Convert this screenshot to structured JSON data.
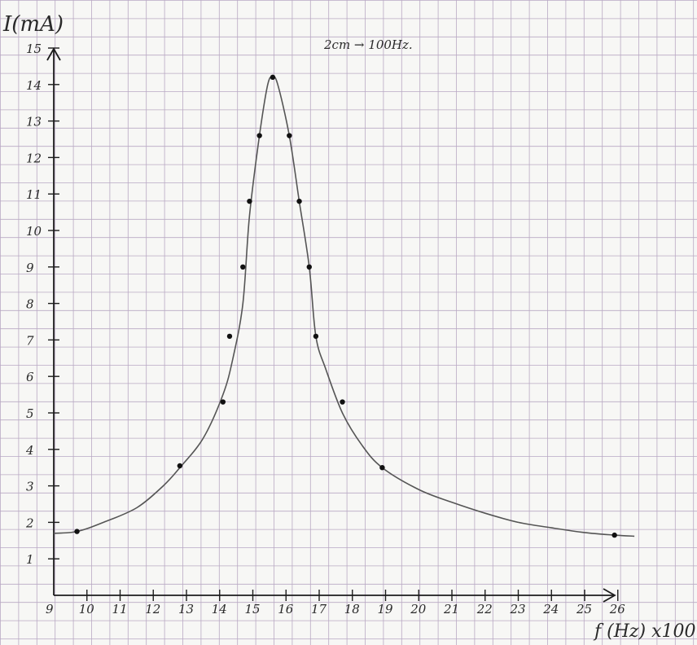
{
  "chart_data": {
    "type": "line",
    "title": "",
    "note": "2cm → 100Hz.",
    "xlabel": "f (Hz) x100",
    "ylabel": "I(mA)",
    "xlim": [
      9,
      26.5
    ],
    "ylim": [
      0,
      15
    ],
    "x_ticks": [
      "9",
      "10",
      "11",
      "12",
      "13",
      "14",
      "15",
      "16",
      "17",
      "18",
      "19",
      "20",
      "21",
      "22",
      "23",
      "24",
      "25",
      "26"
    ],
    "y_ticks": [
      "1",
      "2",
      "3",
      "4",
      "5",
      "6",
      "7",
      "8",
      "9",
      "10",
      "11",
      "12",
      "13",
      "14",
      "15"
    ],
    "points": {
      "x": [
        9.7,
        12.8,
        14.1,
        14.3,
        14.7,
        14.9,
        15.2,
        15.6,
        16.1,
        16.4,
        16.7,
        16.9,
        17.7,
        18.9,
        25.9
      ],
      "y": [
        1.75,
        3.55,
        5.3,
        7.1,
        9.0,
        10.8,
        12.6,
        14.2,
        12.6,
        10.8,
        9.0,
        7.1,
        5.3,
        3.5,
        1.65
      ]
    },
    "curve": {
      "x": [
        9.0,
        9.7,
        10.5,
        11.5,
        12.3,
        12.8,
        13.5,
        14.1,
        14.4,
        14.7,
        14.9,
        15.2,
        15.45,
        15.6,
        15.75,
        16.1,
        16.4,
        16.7,
        16.9,
        17.2,
        17.7,
        18.3,
        18.9,
        20.0,
        21.0,
        22.0,
        23.0,
        24.0,
        25.0,
        25.9,
        26.5
      ],
      "y": [
        1.7,
        1.75,
        2.0,
        2.4,
        3.0,
        3.5,
        4.3,
        5.5,
        6.5,
        8.0,
        10.4,
        12.6,
        14.0,
        14.2,
        14.0,
        12.6,
        10.8,
        9.0,
        7.1,
        6.2,
        5.0,
        4.1,
        3.5,
        2.9,
        2.55,
        2.25,
        2.0,
        1.85,
        1.72,
        1.65,
        1.62
      ]
    }
  }
}
